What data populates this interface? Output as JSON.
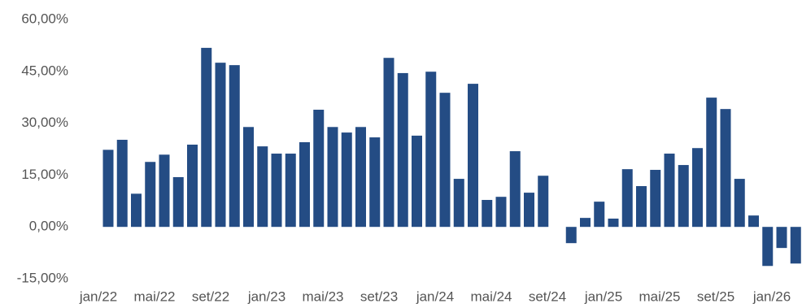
{
  "chart_data": {
    "type": "bar",
    "color": "#244c84",
    "categories": [
      "jan/22",
      null,
      null,
      null,
      "mai/22",
      null,
      null,
      null,
      "set/22",
      null,
      null,
      null,
      "jan/23",
      null,
      null,
      null,
      "mai/23",
      null,
      null,
      null,
      "set/23",
      null,
      null,
      null,
      "jan/24",
      null,
      null,
      null,
      "mai/24",
      null,
      null,
      null,
      "set/24",
      null,
      null,
      null,
      "jan/25",
      null,
      null,
      null,
      "mai/25",
      null,
      null,
      null,
      "set/25",
      null,
      null,
      null,
      "jan/26",
      null
    ],
    "values": [
      22.3,
      25.2,
      9.6,
      18.8,
      20.9,
      14.4,
      23.8,
      51.8,
      47.5,
      46.8,
      28.9,
      23.3,
      21.2,
      21.2,
      24.5,
      33.9,
      28.9,
      27.3,
      28.9,
      25.9,
      48.9,
      44.5,
      26.4,
      44.9,
      38.8,
      13.9,
      41.4,
      7.8,
      8.7,
      21.9,
      9.9,
      14.8,
      null,
      -4.7,
      2.6,
      7.3,
      2.4,
      16.7,
      11.8,
      16.5,
      21.2,
      17.9,
      22.8,
      37.4,
      34.1,
      13.9,
      3.3,
      -11.3,
      -6.1,
      -10.6
    ],
    "ylim": [
      -15,
      60
    ],
    "yticks": [
      {
        "value": -15,
        "label": "-15,00%"
      },
      {
        "value": 0,
        "label": "0,00%"
      },
      {
        "value": 15,
        "label": "15,00%"
      },
      {
        "value": 30,
        "label": "30,00%"
      },
      {
        "value": 45,
        "label": "45,00%"
      },
      {
        "value": 60,
        "label": "60,00%"
      }
    ]
  }
}
